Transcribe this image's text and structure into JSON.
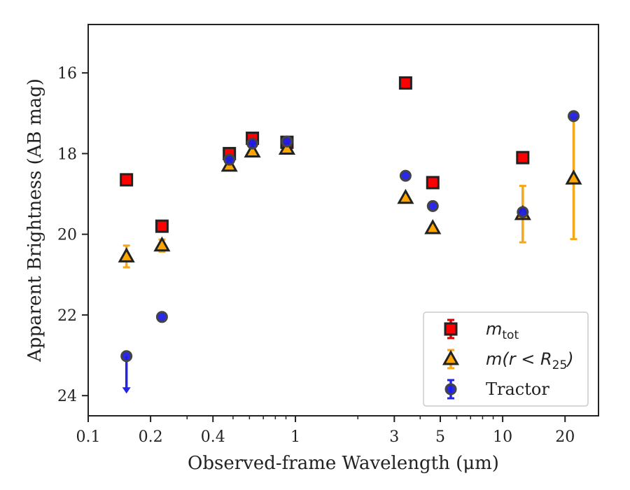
{
  "chart_data": {
    "type": "scatter",
    "title": "",
    "xlabel": "Observed-frame Wavelength (μm)",
    "ylabel": "Apparent Brightness (AB mag)",
    "xscale": "log",
    "xlim": [
      0.1,
      29
    ],
    "ylim": [
      24.5,
      14.8
    ],
    "y_inverted": true,
    "x_ticks": [
      0.1,
      0.2,
      0.4,
      1,
      3,
      5,
      10,
      20
    ],
    "x_tick_labels": [
      "0.1",
      "0.2",
      "0.4",
      "1",
      "3",
      "5",
      "10",
      "20"
    ],
    "y_ticks": [
      16,
      18,
      20,
      22,
      24
    ],
    "y_tick_labels": [
      "16",
      "18",
      "20",
      "22",
      "24"
    ],
    "grid": false,
    "legend_position": "bottom-right",
    "series": [
      {
        "name": "m_tot",
        "label_main": "m",
        "label_sub": "tot",
        "marker": "square",
        "color": "#ff0000",
        "edge_color": "#222222",
        "errorbar_color": "#dd0000",
        "points": [
          {
            "x": 0.153,
            "y": 18.65,
            "err": 0.05
          },
          {
            "x": 0.227,
            "y": 19.8,
            "err": 0.05
          },
          {
            "x": 0.48,
            "y": 18.0,
            "err": 0.05
          },
          {
            "x": 0.62,
            "y": 17.62,
            "err": 0.05
          },
          {
            "x": 0.91,
            "y": 17.72,
            "err": 0.05
          },
          {
            "x": 3.4,
            "y": 16.25,
            "err": 0.05
          },
          {
            "x": 4.6,
            "y": 18.72,
            "err": 0.05
          },
          {
            "x": 12.5,
            "y": 18.1,
            "err": 0.05
          }
        ]
      },
      {
        "name": "m(r < R_25)",
        "label_main": "m(r < R",
        "label_sub": "25",
        "label_tail": ")",
        "marker": "triangle",
        "color": "#ffa500",
        "edge_color": "#222222",
        "errorbar_color": "#f5a81c",
        "points": [
          {
            "x": 0.153,
            "y": 20.55,
            "err": 0.27
          },
          {
            "x": 0.227,
            "y": 20.28,
            "err": 0.15
          },
          {
            "x": 0.48,
            "y": 18.3,
            "err": 0.05
          },
          {
            "x": 0.62,
            "y": 17.95,
            "err": 0.05
          },
          {
            "x": 0.91,
            "y": 17.88,
            "err": 0.05
          },
          {
            "x": 3.4,
            "y": 19.1,
            "err": 0.05
          },
          {
            "x": 4.6,
            "y": 19.85,
            "err": 0.05
          },
          {
            "x": 12.5,
            "y": 19.5,
            "err": 0.7
          },
          {
            "x": 22.0,
            "y": 18.62,
            "err": 1.5
          }
        ]
      },
      {
        "name": "Tractor",
        "label_main": "Tractor",
        "marker": "circle",
        "color": "#1e1ee6",
        "edge_color": "#444444",
        "errorbar_color": "#2424e8",
        "points": [
          {
            "x": 0.153,
            "y": 23.02,
            "err": 0,
            "upper_limit": true,
            "arrow_to": 23.95
          },
          {
            "x": 0.227,
            "y": 22.05,
            "err": 0.05
          },
          {
            "x": 0.48,
            "y": 18.15,
            "err": 0.05
          },
          {
            "x": 0.62,
            "y": 17.75,
            "err": 0.05
          },
          {
            "x": 0.91,
            "y": 17.7,
            "err": 0.05
          },
          {
            "x": 3.4,
            "y": 18.55,
            "err": 0.05
          },
          {
            "x": 4.6,
            "y": 19.3,
            "err": 0.05
          },
          {
            "x": 12.5,
            "y": 19.45,
            "err": 0.05
          },
          {
            "x": 22.0,
            "y": 17.07,
            "err": 0.05
          }
        ]
      }
    ]
  }
}
